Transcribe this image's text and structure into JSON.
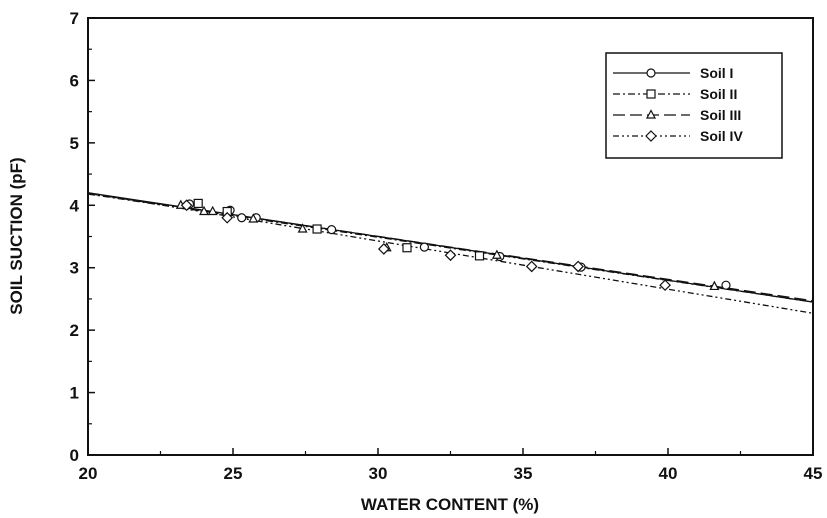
{
  "chart_data": {
    "type": "scatter",
    "title": "",
    "xlabel": "WATER CONTENT (%)",
    "ylabel": "SOIL SUCTION (pF)",
    "xlim": [
      20,
      45
    ],
    "ylim": [
      0,
      7
    ],
    "x_ticks": [
      20,
      25,
      30,
      35,
      40,
      45
    ],
    "y_ticks": [
      0,
      1,
      2,
      3,
      4,
      5,
      6,
      7
    ],
    "grid": false,
    "legend_position": "top-right",
    "series": [
      {
        "name": "Soil I",
        "marker": "circle",
        "line_style": "solid",
        "color": "#111111",
        "points": [
          [
            23.5,
            4.02
          ],
          [
            24.9,
            3.92
          ],
          [
            25.3,
            3.8
          ],
          [
            25.8,
            3.8
          ],
          [
            28.4,
            3.61
          ],
          [
            31.6,
            3.33
          ],
          [
            34.2,
            3.18
          ],
          [
            37.0,
            3.01
          ],
          [
            42.0,
            2.72
          ]
        ],
        "fit": [
          [
            20,
            4.2
          ],
          [
            45,
            2.45
          ]
        ]
      },
      {
        "name": "Soil II",
        "marker": "square",
        "line_style": "dash-dot",
        "color": "#111111",
        "points": [
          [
            23.8,
            4.03
          ],
          [
            24.8,
            3.9
          ],
          [
            27.9,
            3.62
          ],
          [
            31.0,
            3.32
          ],
          [
            33.5,
            3.19
          ]
        ],
        "fit": [
          [
            20,
            4.18
          ],
          [
            45,
            2.45
          ]
        ]
      },
      {
        "name": "Soil III",
        "marker": "triangle",
        "line_style": "long-dash",
        "color": "#111111",
        "points": [
          [
            23.2,
            4.0
          ],
          [
            24.0,
            3.9
          ],
          [
            24.3,
            3.9
          ],
          [
            25.7,
            3.78
          ],
          [
            27.4,
            3.62
          ],
          [
            30.3,
            3.32
          ],
          [
            34.1,
            3.2
          ],
          [
            41.6,
            2.7
          ]
        ],
        "fit": [
          [
            20,
            4.19
          ],
          [
            45,
            2.47
          ]
        ]
      },
      {
        "name": "Soil IV",
        "marker": "diamond",
        "line_style": "dash-dot-dot",
        "color": "#111111",
        "points": [
          [
            23.4,
            4.0
          ],
          [
            24.8,
            3.8
          ],
          [
            30.2,
            3.3
          ],
          [
            32.5,
            3.2
          ],
          [
            35.3,
            3.02
          ],
          [
            36.9,
            3.02
          ],
          [
            39.9,
            2.72
          ]
        ],
        "fit": [
          [
            20,
            4.2
          ],
          [
            45,
            2.27
          ]
        ]
      }
    ]
  }
}
